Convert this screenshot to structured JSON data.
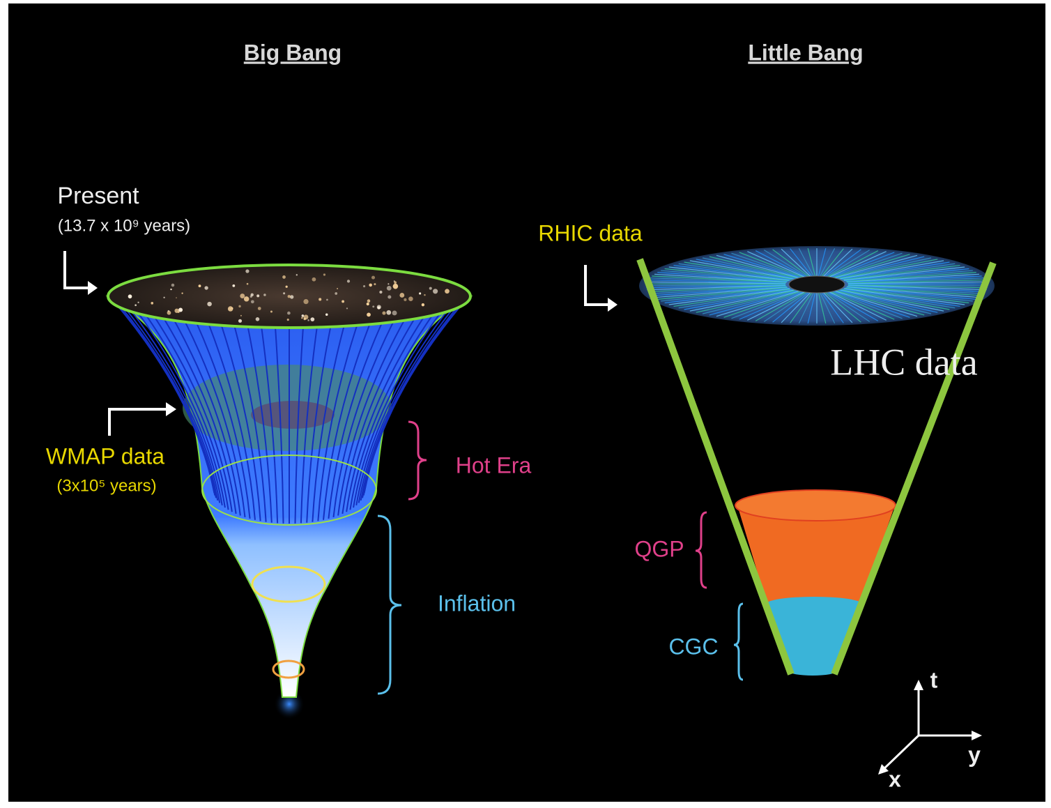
{
  "left": {
    "title": "Big Bang",
    "present": {
      "label": "Present",
      "time": "(13.7 x 10⁹ years)"
    },
    "wmap": {
      "label": "WMAP data",
      "time": "(3x10⁵ years)"
    },
    "eras": [
      "Hot Era",
      "Inflation"
    ]
  },
  "right": {
    "title": "Little Bang",
    "rhic": "RHIC data",
    "lhc": "LHC data",
    "phases": [
      "QGP",
      "CGC"
    ]
  },
  "axes": {
    "t": "t",
    "y": "y",
    "x": "x"
  }
}
